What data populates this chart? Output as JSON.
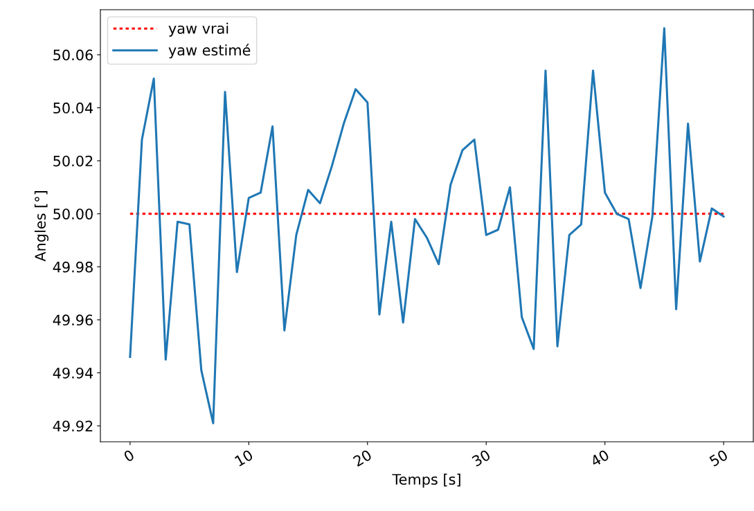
{
  "chart_data": {
    "type": "line",
    "xlabel": "Temps [s]",
    "ylabel": "Angles [°]",
    "x": [
      0,
      1,
      2,
      3,
      4,
      5,
      6,
      7,
      8,
      9,
      10,
      11,
      12,
      13,
      14,
      15,
      16,
      17,
      18,
      19,
      20,
      21,
      22,
      23,
      24,
      25,
      26,
      27,
      28,
      29,
      30,
      31,
      32,
      33,
      34,
      35,
      36,
      37,
      38,
      39,
      40,
      41,
      42,
      43,
      44,
      45,
      46,
      47,
      48,
      49,
      50
    ],
    "series": [
      {
        "name": "yaw vrai",
        "color": "#ff0000",
        "line_style": "dotted",
        "values": [
          50.0,
          50.0,
          50.0,
          50.0,
          50.0,
          50.0,
          50.0,
          50.0,
          50.0,
          50.0,
          50.0,
          50.0,
          50.0,
          50.0,
          50.0,
          50.0,
          50.0,
          50.0,
          50.0,
          50.0,
          50.0,
          50.0,
          50.0,
          50.0,
          50.0,
          50.0,
          50.0,
          50.0,
          50.0,
          50.0,
          50.0,
          50.0,
          50.0,
          50.0,
          50.0,
          50.0,
          50.0,
          50.0,
          50.0,
          50.0,
          50.0,
          50.0,
          50.0,
          50.0,
          50.0,
          50.0,
          50.0,
          50.0,
          50.0,
          50.0,
          50.0
        ]
      },
      {
        "name": "yaw estimé",
        "color": "#1f77b4",
        "line_style": "solid",
        "values": [
          49.946,
          50.028,
          50.051,
          49.945,
          49.997,
          49.996,
          49.941,
          49.921,
          50.046,
          49.978,
          50.006,
          50.008,
          50.033,
          49.956,
          49.992,
          50.009,
          50.004,
          50.018,
          50.034,
          50.047,
          50.042,
          49.962,
          49.997,
          49.959,
          49.998,
          49.991,
          49.981,
          50.011,
          50.024,
          50.028,
          49.992,
          49.994,
          50.01,
          49.961,
          49.949,
          50.054,
          49.95,
          49.992,
          49.996,
          50.054,
          50.008,
          50.0,
          49.998,
          49.972,
          49.999,
          50.07,
          49.964,
          50.034,
          49.982,
          50.002,
          49.999
        ]
      }
    ],
    "xlim": [
      -2.5,
      52.5
    ],
    "xticks": [
      0,
      10,
      20,
      30,
      40,
      50
    ],
    "ylim": [
      49.914,
      50.077
    ],
    "yticks": [
      {
        "value": 49.92,
        "label": "49.92"
      },
      {
        "value": 49.94,
        "label": "49.94"
      },
      {
        "value": 49.96,
        "label": "49.96"
      },
      {
        "value": 49.98,
        "label": "49.98"
      },
      {
        "value": 50.0,
        "label": "50.00"
      },
      {
        "value": 50.02,
        "label": "50.02"
      },
      {
        "value": 50.04,
        "label": "50.04"
      },
      {
        "value": 50.06,
        "label": "50.06"
      }
    ],
    "grid": false,
    "legend": "top left",
    "marker": "none"
  }
}
